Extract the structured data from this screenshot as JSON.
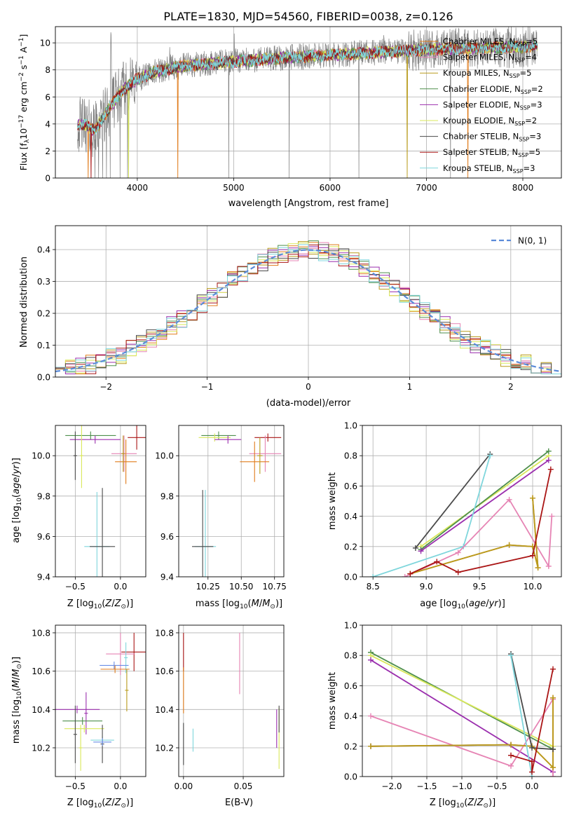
{
  "figure_title": "PLATE=1830, MJD=54560, FIBERID=0038, z=0.126",
  "colors": {
    "Chabrier MILES": "#e07b1a",
    "Salpeter MILES": "#e684b4",
    "Kroupa MILES": "#b89b1c",
    "Chabrier ELODIE": "#4e8f4c",
    "Salpeter ELODIE": "#9b2fae",
    "Kroupa ELODIE": "#d9e85a",
    "Chabrier STELIB": "#4a4a4a",
    "Salpeter STELIB": "#aa1515",
    "Kroupa STELIB": "#7fd6dc",
    "data": "#808080",
    "normal": "#5b8bd9",
    "extra": "#6a8ee6"
  },
  "chart_data": [
    {
      "type": "line",
      "xlabel": "wavelength [Angstrom, rest frame]",
      "ylabel": "Flux [f_λ 10^-17 erg cm^-2 s^-1 A^-1]",
      "xlim": [
        3150,
        8400
      ],
      "ylim": [
        0,
        11.2
      ],
      "xticks": [
        4000,
        5000,
        6000,
        7000,
        8000
      ],
      "yticks": [
        0,
        2,
        4,
        6,
        8,
        10
      ],
      "legend_position": "upper-right",
      "legend": [
        {
          "prefix": "Chabrier MILES, N",
          "sub": "SSP",
          "suffix": "=5",
          "series": "Chabrier MILES"
        },
        {
          "prefix": "Salpeter MILES, N",
          "sub": "SSP",
          "suffix": "=4",
          "series": "Salpeter MILES"
        },
        {
          "prefix": "Kroupa MILES, N",
          "sub": "SSP",
          "suffix": "=5",
          "series": "Kroupa MILES"
        },
        {
          "prefix": "Chabrier ELODIE, N",
          "sub": "SSP",
          "suffix": "=2",
          "series": "Chabrier ELODIE"
        },
        {
          "prefix": "Salpeter ELODIE, N",
          "sub": "SSP",
          "suffix": "=3",
          "series": "Salpeter ELODIE"
        },
        {
          "prefix": "Kroupa ELODIE, N",
          "sub": "SSP",
          "suffix": "=2",
          "series": "Kroupa ELODIE"
        },
        {
          "prefix": "Chabrier STELIB, N",
          "sub": "SSP",
          "suffix": "=3",
          "series": "Chabrier STELIB"
        },
        {
          "prefix": "Salpeter STELIB, N",
          "sub": "SSP",
          "suffix": "=5",
          "series": "Salpeter STELIB"
        },
        {
          "prefix": "Kroupa STELIB, N",
          "sub": "SSP",
          "suffix": "=3",
          "series": "Kroupa STELIB"
        }
      ],
      "continuum_knots": [
        [
          3380,
          3.9
        ],
        [
          3450,
          4.0
        ],
        [
          3550,
          3.5
        ],
        [
          3650,
          4.5
        ],
        [
          3750,
          5.6
        ],
        [
          3850,
          6.5
        ],
        [
          4000,
          7.3
        ],
        [
          4200,
          7.9
        ],
        [
          4500,
          8.3
        ],
        [
          5000,
          8.6
        ],
        [
          5500,
          8.9
        ],
        [
          6000,
          9.1
        ],
        [
          6500,
          9.3
        ],
        [
          7000,
          9.5
        ],
        [
          7500,
          9.6
        ],
        [
          8000,
          9.7
        ],
        [
          8150,
          9.8
        ]
      ],
      "emission_lines": [
        [
          3727,
          10.5
        ],
        [
          4340,
          8.9
        ],
        [
          4861,
          9.6
        ],
        [
          5007,
          9.8
        ],
        [
          6563,
          10.2
        ]
      ],
      "data_dropouts": [
        3520,
        3560,
        3600,
        3640,
        3680,
        3720,
        3820,
        3900,
        4950,
        5577,
        6300,
        7250
      ],
      "model_dropouts": [
        [
          3490,
          "Chabrier MILES"
        ],
        [
          3520,
          "Salpeter STELIB"
        ],
        [
          3910,
          "Kroupa ELODIE"
        ],
        [
          4420,
          "Chabrier MILES"
        ],
        [
          6800,
          "Kroupa MILES"
        ],
        [
          7430,
          "Chabrier MILES"
        ]
      ],
      "data_noise_amplitude": 1.4,
      "model_noise_amplitude": 0.35
    },
    {
      "type": "step",
      "xlabel": "(data-model)/error",
      "ylabel": "Normed distribution",
      "xlim": [
        -2.5,
        2.5
      ],
      "ylim": [
        0,
        0.475
      ],
      "xticks": [
        -2,
        -1,
        0,
        1,
        2
      ],
      "yticks": [
        0,
        0.1,
        0.2,
        0.3,
        0.4
      ],
      "legend_position": "upper-right",
      "legend_label": "N(0, 1)",
      "bin_edges_start": -2.5,
      "bin_width": 0.1,
      "bin_count": 50,
      "histogram_jitter": 0.03,
      "reference_curve": {
        "name": "N(0, 1)",
        "mean": 0,
        "sigma": 1
      }
    },
    {
      "type": "scatter",
      "xlabel": "Z [log10(Z/Z⊙)]",
      "ylabel": "age  [log10(age/yr)]",
      "xlim": [
        -0.72,
        0.28
      ],
      "ylim": [
        9.4,
        10.15
      ],
      "xticks": [
        -0.5,
        0.0
      ],
      "yticks": [
        9.4,
        9.6,
        9.8,
        10.0
      ],
      "points": [
        {
          "series": "Chabrier ELODIE",
          "x": -0.33,
          "y": 10.1,
          "xerr": 0.28,
          "yerr": 0.02
        },
        {
          "series": "Salpeter ELODIE",
          "x": -0.28,
          "y": 10.08,
          "xerr": 0.28,
          "yerr": 0.02
        },
        {
          "series": "Kroupa ELODIE",
          "x": -0.43,
          "y": 10.0,
          "xerr": 0.02,
          "yerr": 0.16
        },
        {
          "series": "Chabrier STELIB",
          "x": -0.5,
          "y": 10.0,
          "xerr": 0.02,
          "yerr": 0.12
        },
        {
          "series": "Salpeter STELIB",
          "x": 0.18,
          "y": 10.09,
          "xerr": 0.1,
          "yerr": 0.06
        },
        {
          "series": "Salpeter MILES",
          "x": 0.04,
          "y": 10.01,
          "xerr": 0.14,
          "yerr": 0.09
        },
        {
          "series": "Chabrier MILES",
          "x": 0.06,
          "y": 9.97,
          "xerr": 0.12,
          "yerr": 0.11
        },
        {
          "series": "Kroupa MILES",
          "x": 0.03,
          "y": 10.01,
          "xerr": 0.02,
          "yerr": 0.09
        },
        {
          "series": "Kroupa STELIB",
          "x": -0.26,
          "y": 9.55,
          "xerr": 0.14,
          "yerr": 0.27
        },
        {
          "series": "Chabrier STELIB",
          "x": -0.2,
          "y": 9.55,
          "xerr": 0.14,
          "yerr": 0.29
        }
      ]
    },
    {
      "type": "scatter",
      "xlabel": "mass [log10(M/M⊙)]",
      "ylabel": "",
      "xlim": [
        10.03,
        10.82
      ],
      "ylim": [
        9.4,
        10.15
      ],
      "xticks": [
        10.25,
        10.5,
        10.75
      ],
      "yticks": [
        9.4,
        9.6,
        9.8,
        10.0
      ],
      "points": [
        {
          "series": "Chabrier ELODIE",
          "x": 10.33,
          "y": 10.1,
          "xerr": 0.13,
          "yerr": 0.02
        },
        {
          "series": "Kroupa ELODIE",
          "x": 10.3,
          "y": 10.09,
          "xerr": 0.12,
          "yerr": 0.02
        },
        {
          "series": "Salpeter ELODIE",
          "x": 10.4,
          "y": 10.08,
          "xerr": 0.1,
          "yerr": 0.02
        },
        {
          "series": "Salpeter STELIB",
          "x": 10.7,
          "y": 10.09,
          "xerr": 0.1,
          "yerr": 0.02
        },
        {
          "series": "Salpeter MILES",
          "x": 10.68,
          "y": 10.01,
          "xerr": 0.12,
          "yerr": 0.09
        },
        {
          "series": "Chabrier MILES",
          "x": 10.6,
          "y": 9.97,
          "xerr": 0.11,
          "yerr": 0.1
        },
        {
          "series": "Kroupa MILES",
          "x": 10.64,
          "y": 10.0,
          "xerr": 0.02,
          "yerr": 0.09
        },
        {
          "series": "Kroupa STELIB",
          "x": 10.23,
          "y": 9.55,
          "xerr": 0.08,
          "yerr": 0.28
        },
        {
          "series": "Chabrier STELIB",
          "x": 10.21,
          "y": 9.55,
          "xerr": 0.08,
          "yerr": 0.28
        }
      ]
    },
    {
      "type": "line",
      "xlabel": "age  [log10(age/yr)]",
      "ylabel": "mass weight",
      "xlim": [
        8.4,
        10.27
      ],
      "ylim": [
        0,
        1
      ],
      "xticks": [
        8.5,
        9.0,
        9.5,
        10.0
      ],
      "yticks": [
        0,
        0.2,
        0.4,
        0.6,
        0.8,
        1.0
      ],
      "series": [
        {
          "name": "Kroupa ELODIE",
          "x": [
            8.95,
            10.15
          ],
          "y": [
            0.2,
            0.8
          ]
        },
        {
          "name": "Chabrier ELODIE",
          "x": [
            8.95,
            10.15
          ],
          "y": [
            0.18,
            0.83
          ]
        },
        {
          "name": "Salpeter ELODIE",
          "x": [
            8.95,
            10.15
          ],
          "y": [
            0.17,
            0.77
          ]
        },
        {
          "name": "Chabrier STELIB",
          "x": [
            8.9,
            9.6
          ],
          "y": [
            0.19,
            0.81
          ]
        },
        {
          "name": "Kroupa STELIB",
          "x": [
            8.5,
            9.35,
            9.6
          ],
          "y": [
            0.0,
            0.2,
            0.8
          ]
        },
        {
          "name": "Salpeter MILES",
          "x": [
            8.8,
            9.3,
            9.78,
            10.15,
            10.18
          ],
          "y": [
            0.0,
            0.16,
            0.51,
            0.07,
            0.4
          ]
        },
        {
          "name": "Chabrier MILES",
          "x": [
            8.85,
            9.78,
            10.0,
            10.05,
            10.0
          ],
          "y": [
            0.02,
            0.21,
            0.2,
            0.06,
            0.52
          ]
        },
        {
          "name": "Kroupa MILES",
          "x": [
            8.85,
            9.78,
            10.0,
            10.05,
            10.0
          ],
          "y": [
            0.02,
            0.21,
            0.2,
            0.06,
            0.52
          ]
        },
        {
          "name": "Salpeter STELIB",
          "x": [
            8.85,
            9.1,
            9.3,
            10.0,
            10.17
          ],
          "y": [
            0.02,
            0.1,
            0.03,
            0.14,
            0.71
          ]
        }
      ]
    },
    {
      "type": "scatter",
      "xlabel": "Z [log10(Z/Z⊙)]",
      "ylabel": "mass [log10(M/M⊙)]",
      "xlim": [
        -0.72,
        0.28
      ],
      "ylim": [
        10.05,
        10.84
      ],
      "xticks": [
        -0.5,
        0.0
      ],
      "yticks": [
        10.2,
        10.4,
        10.6,
        10.8
      ],
      "points": [
        {
          "series": "Salpeter STELIB",
          "x": 0.15,
          "y": 10.7,
          "xerr": 0.14,
          "yerr": 0.1
        },
        {
          "series": "Salpeter MILES",
          "x": 0.0,
          "y": 10.69,
          "xerr": 0.16,
          "yerr": 0.11
        },
        {
          "series": "Kroupa STELIB",
          "x": 0.06,
          "y": 10.67,
          "xerr": 0.02,
          "yerr": 0.08
        },
        {
          "series": "extra",
          "x": -0.07,
          "y": 10.63,
          "xerr": 0.16,
          "yerr": 0.02
        },
        {
          "series": "Chabrier MILES",
          "x": -0.06,
          "y": 10.61,
          "xerr": 0.16,
          "yerr": 0.02
        },
        {
          "series": "Kroupa MILES",
          "x": 0.07,
          "y": 10.5,
          "xerr": 0.02,
          "yerr": 0.11
        },
        {
          "series": "Salpeter ELODIE",
          "x": -0.48,
          "y": 10.4,
          "xerr": 0.25,
          "yerr": 0.02
        },
        {
          "series": "Salpeter ELODIE",
          "x": -0.38,
          "y": 10.38,
          "xerr": 0.02,
          "yerr": 0.11
        },
        {
          "series": "Chabrier ELODIE",
          "x": -0.42,
          "y": 10.34,
          "xerr": 0.22,
          "yerr": 0.02
        },
        {
          "series": "Kroupa ELODIE",
          "x": -0.4,
          "y": 10.3,
          "xerr": 0.22,
          "yerr": 0.02
        },
        {
          "series": "Chabrier STELIB",
          "x": -0.5,
          "y": 10.27,
          "xerr": 0.02,
          "yerr": 0.15
        },
        {
          "series": "Kroupa STELIB",
          "x": -0.2,
          "y": 10.24,
          "xerr": 0.13,
          "yerr": 0.02
        },
        {
          "series": "Chabrier STELIB",
          "x": -0.2,
          "y": 10.22,
          "xerr": 0.02,
          "yerr": 0.1
        },
        {
          "series": "Kroupa ELODIE",
          "x": -0.44,
          "y": 10.2,
          "xerr": 0.02,
          "yerr": 0.12
        },
        {
          "series": "extra",
          "x": -0.2,
          "y": 10.23,
          "xerr": 0.1,
          "yerr": 0.02
        }
      ]
    },
    {
      "type": "scatter",
      "xlabel": "E(B-V)",
      "ylabel": "",
      "xlim": [
        -0.004,
        0.084
      ],
      "ylim": [
        10.05,
        10.84
      ],
      "xticks": [
        0.0,
        0.05
      ],
      "yticks": [
        10.2,
        10.4,
        10.6,
        10.8
      ],
      "points": [
        {
          "series": "Salpeter STELIB",
          "x": 0.0,
          "y": 10.7,
          "xerr": 0.0,
          "yerr": 0.1
        },
        {
          "series": "Chabrier MILES",
          "x": 0.0,
          "y": 10.5,
          "xerr": 0.0,
          "yerr": 0.12
        },
        {
          "series": "Chabrier STELIB",
          "x": 0.0,
          "y": 10.22,
          "xerr": 0.0,
          "yerr": 0.11
        },
        {
          "series": "Kroupa STELIB",
          "x": 0.008,
          "y": 10.24,
          "xerr": 0.0,
          "yerr": 0.06
        },
        {
          "series": "Salpeter MILES",
          "x": 0.047,
          "y": 10.64,
          "xerr": 0.0,
          "yerr": 0.16
        },
        {
          "series": "Salpeter ELODIE",
          "x": 0.078,
          "y": 10.3,
          "xerr": 0.0,
          "yerr": 0.1
        },
        {
          "series": "Kroupa ELODIE",
          "x": 0.08,
          "y": 10.25,
          "xerr": 0.0,
          "yerr": 0.16
        },
        {
          "series": "Chabrier STELIB",
          "x": 0.08,
          "y": 10.35,
          "xerr": 0.0,
          "yerr": 0.07
        }
      ]
    },
    {
      "type": "line",
      "xlabel": "Z [log10(Z/Z⊙)]",
      "ylabel": "mass weight",
      "xlim": [
        -2.42,
        0.42
      ],
      "ylim": [
        0,
        1
      ],
      "xticks": [
        -2.0,
        -1.5,
        -1.0,
        -0.5,
        0.0
      ],
      "yticks": [
        0,
        0.2,
        0.4,
        0.6,
        0.8,
        1.0
      ],
      "series": [
        {
          "name": "Chabrier ELODIE",
          "x": [
            -2.3,
            0.3
          ],
          "y": [
            0.82,
            0.18
          ]
        },
        {
          "name": "Kroupa ELODIE",
          "x": [
            -2.3,
            0.3
          ],
          "y": [
            0.8,
            0.2
          ]
        },
        {
          "name": "Salpeter ELODIE",
          "x": [
            -2.3,
            0.3
          ],
          "y": [
            0.77,
            0.03
          ]
        },
        {
          "name": "Salpeter MILES",
          "x": [
            -2.3,
            -0.3,
            0.3,
            0.3
          ],
          "y": [
            0.4,
            0.07,
            0.51,
            0.0
          ]
        },
        {
          "name": "extra",
          "x": [
            -2.3,
            -0.3
          ],
          "y": [
            0.2,
            0.21
          ]
        },
        {
          "name": "Chabrier MILES",
          "x": [
            -2.3,
            -0.3,
            0.0,
            0.3,
            0.3
          ],
          "y": [
            0.2,
            0.21,
            0.2,
            0.06,
            0.52
          ]
        },
        {
          "name": "Kroupa MILES",
          "x": [
            -2.3,
            -0.3,
            0.0,
            0.3,
            0.3
          ],
          "y": [
            0.2,
            0.21,
            0.2,
            0.06,
            0.52
          ]
        },
        {
          "name": "Chabrier STELIB",
          "x": [
            -0.3,
            0.0,
            0.3
          ],
          "y": [
            0.81,
            0.19,
            0.18
          ]
        },
        {
          "name": "Kroupa STELIB",
          "x": [
            -0.3,
            0.0
          ],
          "y": [
            0.8,
            0.0
          ]
        },
        {
          "name": "Salpeter STELIB",
          "x": [
            -0.3,
            0.0,
            0.0,
            0.3
          ],
          "y": [
            0.14,
            0.1,
            0.03,
            0.71
          ]
        }
      ]
    }
  ]
}
